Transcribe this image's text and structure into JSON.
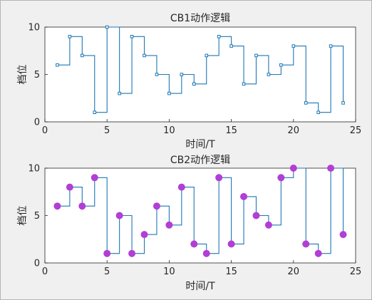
{
  "chart_data": [
    {
      "type": "line",
      "style": "stairs",
      "title": "CB1动作逻辑",
      "xlabel": "时间/T",
      "ylabel": "档位",
      "xlim": [
        0,
        25
      ],
      "ylim": [
        0,
        10
      ],
      "xticks": [
        "0",
        "5",
        "10",
        "15",
        "20",
        "25"
      ],
      "yticks": [
        "0",
        "5",
        "10"
      ],
      "grid": false,
      "marker": "square",
      "line_color": "#1f77b4",
      "marker_color": "#1f77b4",
      "series": [
        {
          "x": [
            1,
            2,
            3,
            4,
            5,
            6,
            7,
            8,
            9,
            10,
            11,
            12,
            13,
            14,
            15,
            16,
            17,
            18,
            19,
            20,
            21,
            22,
            23,
            24
          ],
          "values": [
            6,
            9,
            7,
            1,
            10,
            3,
            9,
            7,
            5,
            3,
            5,
            4,
            7,
            9,
            8,
            4,
            7,
            5,
            6,
            8,
            2,
            1,
            8,
            2
          ]
        }
      ]
    },
    {
      "type": "line",
      "style": "stairs",
      "title": "CB2动作逻辑",
      "xlabel": "时间/T",
      "ylabel": "档位",
      "xlim": [
        0,
        25
      ],
      "ylim": [
        0,
        10
      ],
      "xticks": [
        "0",
        "5",
        "10",
        "15",
        "20",
        "25"
      ],
      "yticks": [
        "0",
        "5",
        "10"
      ],
      "grid": false,
      "marker": "circle",
      "line_color": "#1f77b4",
      "marker_color": "#b23ed6",
      "series": [
        {
          "x": [
            1,
            2,
            3,
            4,
            5,
            6,
            7,
            8,
            9,
            10,
            11,
            12,
            13,
            14,
            15,
            16,
            17,
            18,
            19,
            20,
            21,
            22,
            23,
            24
          ],
          "values": [
            6,
            8,
            6,
            9,
            1,
            5,
            1,
            3,
            6,
            4,
            8,
            2,
            1,
            9,
            2,
            7,
            5,
            4,
            9,
            10,
            2,
            1,
            10,
            3
          ]
        }
      ]
    }
  ]
}
